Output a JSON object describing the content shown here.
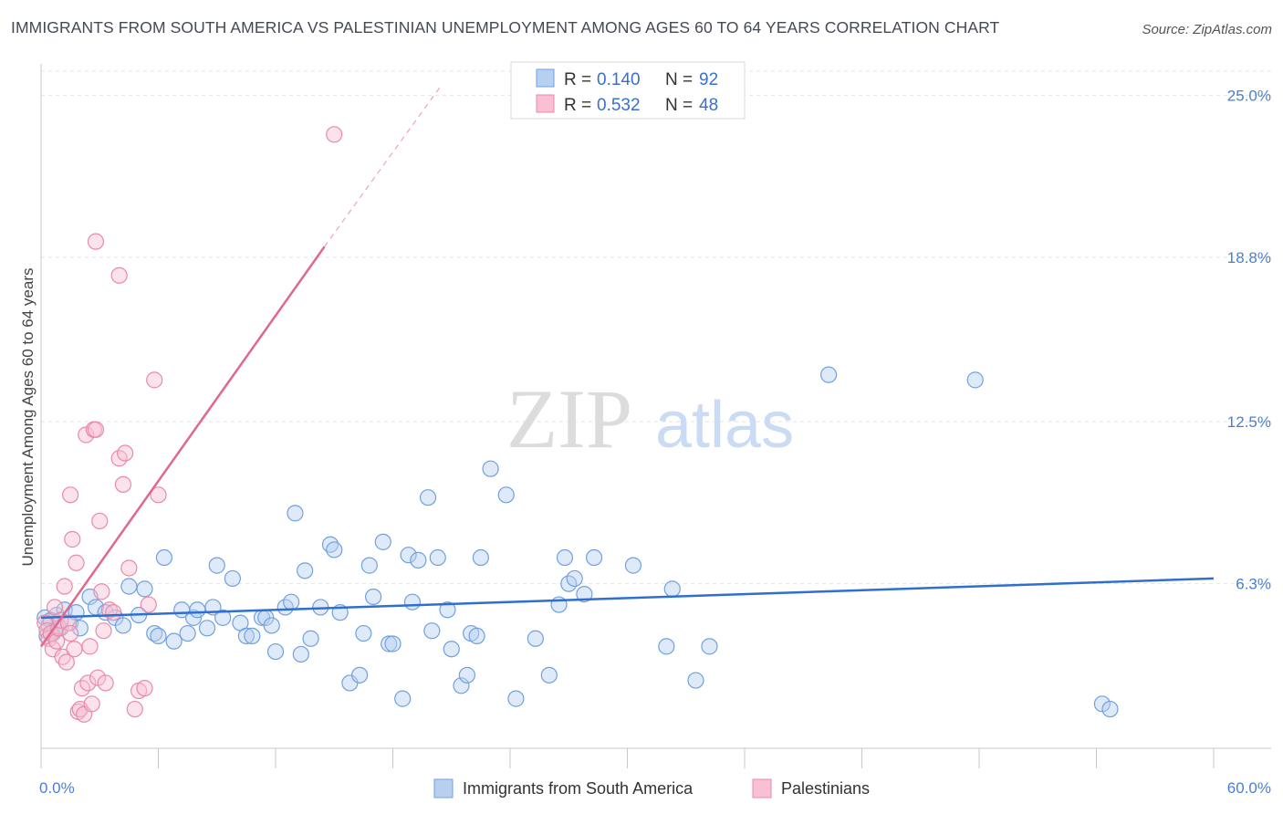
{
  "title": "IMMIGRANTS FROM SOUTH AMERICA VS PALESTINIAN UNEMPLOYMENT AMONG AGES 60 TO 64 YEARS CORRELATION CHART",
  "source": "Source: ZipAtlas.com",
  "watermark": {
    "zip": "ZIP",
    "atlas": "atlas"
  },
  "chart_data": {
    "type": "scatter",
    "xlabel": "",
    "ylabel": "Unemployment Among Ages 60 to 64 years",
    "xlim": [
      0,
      60
    ],
    "ylim": [
      0,
      26.2
    ],
    "x_tick_labels": [
      "0.0%",
      "60.0%"
    ],
    "y_ticks": [
      6.3,
      12.5,
      18.8,
      25.0
    ],
    "y_tick_labels": [
      "6.3%",
      "12.5%",
      "18.8%",
      "25.0%"
    ],
    "legend_stats": [
      {
        "r_label": "R = ",
        "r_value": "0.140",
        "n_label": "N = ",
        "n_value": "92"
      },
      {
        "r_label": "R = ",
        "r_value": "0.532",
        "n_label": "N = ",
        "n_value": "48"
      }
    ],
    "series": [
      {
        "name": "Immigrants from South America",
        "color": "#6fa0e0",
        "fill": "#b8d0f0",
        "line_color": "#2f6fd0",
        "trend": {
          "x0": 0,
          "y0": 5.0,
          "x1": 60,
          "y1": 6.5
        },
        "points": [
          [
            0.2,
            5.0
          ],
          [
            0.4,
            4.7
          ],
          [
            0.6,
            4.4
          ],
          [
            0.8,
            5.1
          ],
          [
            1.0,
            4.6
          ],
          [
            1.2,
            5.3
          ],
          [
            0.3,
            4.3
          ],
          [
            0.5,
            4.9
          ],
          [
            0.7,
            4.5
          ],
          [
            1.5,
            4.8
          ],
          [
            1.8,
            5.2
          ],
          [
            2.0,
            4.6
          ],
          [
            2.5,
            5.8
          ],
          [
            2.8,
            5.4
          ],
          [
            3.3,
            5.2
          ],
          [
            3.8,
            5.0
          ],
          [
            4.2,
            4.7
          ],
          [
            4.5,
            6.2
          ],
          [
            5.0,
            5.1
          ],
          [
            5.3,
            6.1
          ],
          [
            5.8,
            4.4
          ],
          [
            6.0,
            4.3
          ],
          [
            6.3,
            7.3
          ],
          [
            6.8,
            4.1
          ],
          [
            7.2,
            5.3
          ],
          [
            7.5,
            4.4
          ],
          [
            7.8,
            5.0
          ],
          [
            8.0,
            5.3
          ],
          [
            8.5,
            4.6
          ],
          [
            8.8,
            5.4
          ],
          [
            9.0,
            7.0
          ],
          [
            9.3,
            5.0
          ],
          [
            9.8,
            6.5
          ],
          [
            10.2,
            4.8
          ],
          [
            10.5,
            4.3
          ],
          [
            10.8,
            4.3
          ],
          [
            11.3,
            5.0
          ],
          [
            11.5,
            5.0
          ],
          [
            11.8,
            4.7
          ],
          [
            12.0,
            3.7
          ],
          [
            12.5,
            5.4
          ],
          [
            12.8,
            5.6
          ],
          [
            13.0,
            9.0
          ],
          [
            13.3,
            3.6
          ],
          [
            13.5,
            6.8
          ],
          [
            13.8,
            4.2
          ],
          [
            14.3,
            5.4
          ],
          [
            14.8,
            7.8
          ],
          [
            15.0,
            7.6
          ],
          [
            15.3,
            5.2
          ],
          [
            15.8,
            2.5
          ],
          [
            16.3,
            2.8
          ],
          [
            16.5,
            4.4
          ],
          [
            16.8,
            7.0
          ],
          [
            17.0,
            5.8
          ],
          [
            17.5,
            7.9
          ],
          [
            17.8,
            4.0
          ],
          [
            18.0,
            4.0
          ],
          [
            18.5,
            1.9
          ],
          [
            18.8,
            7.4
          ],
          [
            19.0,
            5.6
          ],
          [
            19.3,
            7.2
          ],
          [
            19.8,
            9.6
          ],
          [
            20.0,
            4.5
          ],
          [
            20.3,
            7.3
          ],
          [
            20.8,
            5.3
          ],
          [
            21.0,
            3.8
          ],
          [
            21.5,
            2.4
          ],
          [
            21.8,
            2.8
          ],
          [
            22.0,
            4.4
          ],
          [
            22.3,
            4.3
          ],
          [
            22.5,
            7.3
          ],
          [
            23.0,
            10.7
          ],
          [
            23.8,
            9.7
          ],
          [
            24.3,
            1.9
          ],
          [
            25.3,
            4.2
          ],
          [
            26.0,
            2.8
          ],
          [
            26.5,
            5.5
          ],
          [
            26.8,
            7.3
          ],
          [
            27.0,
            6.3
          ],
          [
            27.3,
            6.5
          ],
          [
            27.8,
            5.9
          ],
          [
            28.3,
            7.3
          ],
          [
            30.3,
            7.0
          ],
          [
            32.0,
            3.9
          ],
          [
            32.3,
            6.1
          ],
          [
            33.5,
            2.6
          ],
          [
            34.2,
            3.9
          ],
          [
            40.3,
            14.3
          ],
          [
            47.8,
            14.1
          ],
          [
            54.3,
            1.7
          ],
          [
            54.7,
            1.5
          ]
        ]
      },
      {
        "name": "Palestinians",
        "color": "#e88aa8",
        "fill": "#f8c0d2",
        "line_color": "#e06890",
        "trend": {
          "x0": 0,
          "y0": 3.9,
          "x1": 14.5,
          "y1": 19.2
        },
        "trend_dashed": {
          "x0": 14.5,
          "y0": 19.2,
          "x1": 20.5,
          "y1": 25.4
        },
        "points": [
          [
            0.2,
            4.8
          ],
          [
            0.3,
            4.5
          ],
          [
            0.4,
            4.2
          ],
          [
            0.5,
            4.4
          ],
          [
            0.6,
            3.8
          ],
          [
            0.7,
            5.4
          ],
          [
            0.8,
            4.1
          ],
          [
            0.9,
            4.6
          ],
          [
            1.0,
            4.9
          ],
          [
            1.1,
            3.5
          ],
          [
            1.2,
            6.2
          ],
          [
            1.3,
            3.3
          ],
          [
            1.4,
            4.8
          ],
          [
            1.5,
            4.4
          ],
          [
            1.6,
            8.0
          ],
          [
            1.7,
            3.8
          ],
          [
            1.8,
            7.1
          ],
          [
            1.9,
            1.4
          ],
          [
            2.0,
            1.5
          ],
          [
            2.1,
            2.3
          ],
          [
            2.2,
            1.3
          ],
          [
            2.3,
            12.0
          ],
          [
            2.4,
            2.5
          ],
          [
            2.5,
            3.9
          ],
          [
            2.6,
            1.7
          ],
          [
            2.7,
            12.2
          ],
          [
            2.8,
            12.2
          ],
          [
            2.9,
            2.7
          ],
          [
            3.0,
            8.7
          ],
          [
            3.1,
            6.0
          ],
          [
            3.2,
            4.5
          ],
          [
            3.3,
            2.5
          ],
          [
            3.5,
            5.3
          ],
          [
            3.7,
            5.2
          ],
          [
            4.0,
            11.1
          ],
          [
            4.2,
            10.1
          ],
          [
            4.3,
            11.3
          ],
          [
            4.5,
            6.9
          ],
          [
            4.8,
            1.5
          ],
          [
            5.0,
            2.2
          ],
          [
            5.3,
            2.3
          ],
          [
            5.5,
            5.5
          ],
          [
            5.8,
            14.1
          ],
          [
            6.0,
            9.7
          ],
          [
            2.8,
            19.4
          ],
          [
            4.0,
            18.1
          ],
          [
            15.0,
            23.5
          ],
          [
            1.5,
            9.7
          ]
        ]
      }
    ]
  }
}
